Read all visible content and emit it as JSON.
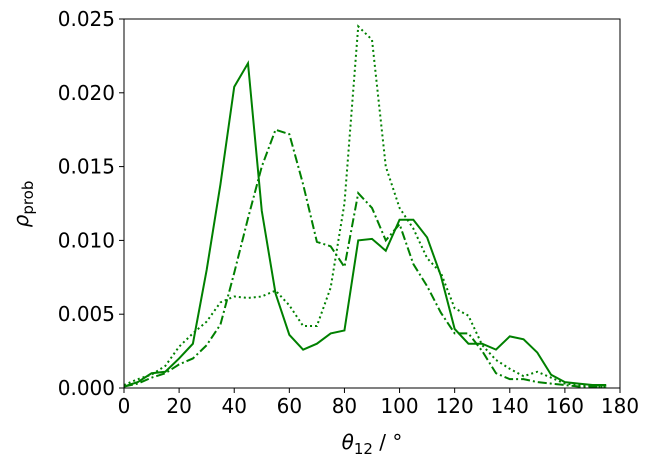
{
  "chart_data": {
    "type": "line",
    "xlabel": {
      "symbol": "θ",
      "subscript": "12",
      "unit": " / °"
    },
    "ylabel": {
      "symbol": "ρ",
      "subscript": "prob"
    },
    "x": [
      0,
      5,
      10,
      15,
      20,
      25,
      30,
      35,
      40,
      45,
      50,
      55,
      60,
      65,
      70,
      75,
      80,
      85,
      90,
      95,
      100,
      105,
      110,
      115,
      120,
      125,
      130,
      135,
      140,
      145,
      150,
      155,
      160,
      165,
      170,
      175
    ],
    "series": [
      {
        "color": "#008000",
        "dash": "solid",
        "values": [
          0.0001,
          0.0004,
          0.001,
          0.0011,
          0.002,
          0.003,
          0.008,
          0.0138,
          0.0204,
          0.022,
          0.012,
          0.0064,
          0.0036,
          0.0026,
          0.003,
          0.0037,
          0.0039,
          0.01,
          0.0101,
          0.0093,
          0.0114,
          0.0114,
          0.0102,
          0.0076,
          0.004,
          0.003,
          0.003,
          0.0026,
          0.0035,
          0.0033,
          0.0024,
          0.0009,
          0.0004,
          0.0003,
          0.0002,
          0.0002
        ]
      },
      {
        "color": "#008000",
        "dash": "dotted",
        "values": [
          0.0002,
          0.0006,
          0.0009,
          0.0015,
          0.0028,
          0.0037,
          0.0045,
          0.0058,
          0.0062,
          0.0061,
          0.0062,
          0.0066,
          0.0056,
          0.0042,
          0.0042,
          0.0068,
          0.0125,
          0.0245,
          0.0236,
          0.015,
          0.0122,
          0.0108,
          0.0088,
          0.0078,
          0.0054,
          0.0049,
          0.0029,
          0.0019,
          0.0013,
          0.0008,
          0.0011,
          0.0007,
          0.0003,
          0.0002,
          0.0001,
          0.0001
        ]
      },
      {
        "color": "#008000",
        "dash": "dashdot",
        "values": [
          0.0001,
          0.0003,
          0.0007,
          0.001,
          0.0016,
          0.002,
          0.0029,
          0.0043,
          0.0078,
          0.0115,
          0.015,
          0.0175,
          0.0172,
          0.0138,
          0.0099,
          0.0096,
          0.0082,
          0.0132,
          0.0122,
          0.01,
          0.0111,
          0.0084,
          0.0069,
          0.0051,
          0.0037,
          0.0037,
          0.0025,
          0.001,
          0.0006,
          0.0006,
          0.0004,
          0.0003,
          0.0002,
          0.0001,
          0.0001,
          0.0001
        ]
      }
    ],
    "xlim": [
      0,
      180
    ],
    "xticks": [
      0,
      20,
      40,
      60,
      80,
      100,
      120,
      140,
      160,
      180
    ],
    "ylim": [
      0,
      0.025
    ],
    "yticks": [
      {
        "value": 0,
        "label": "0.000"
      },
      0.005,
      {
        "value": 0.01,
        "label": "0.010"
      },
      0.015,
      {
        "value": 0.02,
        "label": "0.020"
      },
      0.025
    ],
    "grid": false
  }
}
